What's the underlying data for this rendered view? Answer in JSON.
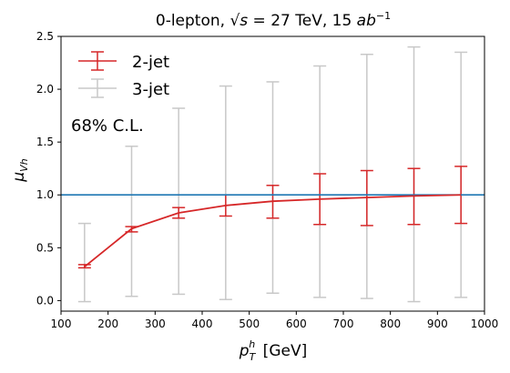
{
  "chart_data": {
    "type": "line",
    "title": "0-lepton, √s = 27 TeV, 15 ab⁻¹",
    "xlabel": "p_T^h [GeV]",
    "ylabel": "μ_Vh",
    "xlim": [
      100,
      1000
    ],
    "ylim": [
      -0.1,
      2.5
    ],
    "xticks": [
      100,
      200,
      300,
      400,
      500,
      600,
      700,
      800,
      900,
      1000
    ],
    "yticks": [
      0.0,
      0.5,
      1.0,
      1.5,
      2.0,
      2.5
    ],
    "grid": false,
    "legend_placement": "top-left",
    "reference_line": {
      "y": 1.0,
      "color": "#1f77b4"
    },
    "annotation": "68% C.L.",
    "series": [
      {
        "name": "2-jet",
        "color": "#d62728",
        "x": [
          150,
          250,
          350,
          450,
          550,
          650,
          750,
          850,
          950
        ],
        "y": [
          0.32,
          0.68,
          0.83,
          0.9,
          0.94,
          0.96,
          0.975,
          0.99,
          1.0
        ],
        "err_low": [
          0.31,
          0.65,
          0.78,
          0.8,
          0.78,
          0.72,
          0.71,
          0.72,
          0.73
        ],
        "err_high": [
          0.34,
          0.7,
          0.88,
          1.0,
          1.09,
          1.2,
          1.23,
          1.25,
          1.27
        ]
      },
      {
        "name": "3-jet",
        "color": "#c8c8c8",
        "x": [
          150,
          250,
          350,
          450,
          550,
          650,
          750,
          850,
          950
        ],
        "y": [
          0.32,
          0.68,
          0.83,
          0.9,
          0.94,
          0.96,
          0.975,
          0.99,
          1.0
        ],
        "err_low": [
          -0.01,
          0.04,
          0.06,
          0.01,
          0.07,
          0.03,
          0.02,
          -0.01,
          0.03
        ],
        "err_high": [
          0.73,
          1.46,
          1.82,
          2.03,
          2.07,
          2.22,
          2.33,
          2.4,
          2.35
        ]
      }
    ]
  }
}
